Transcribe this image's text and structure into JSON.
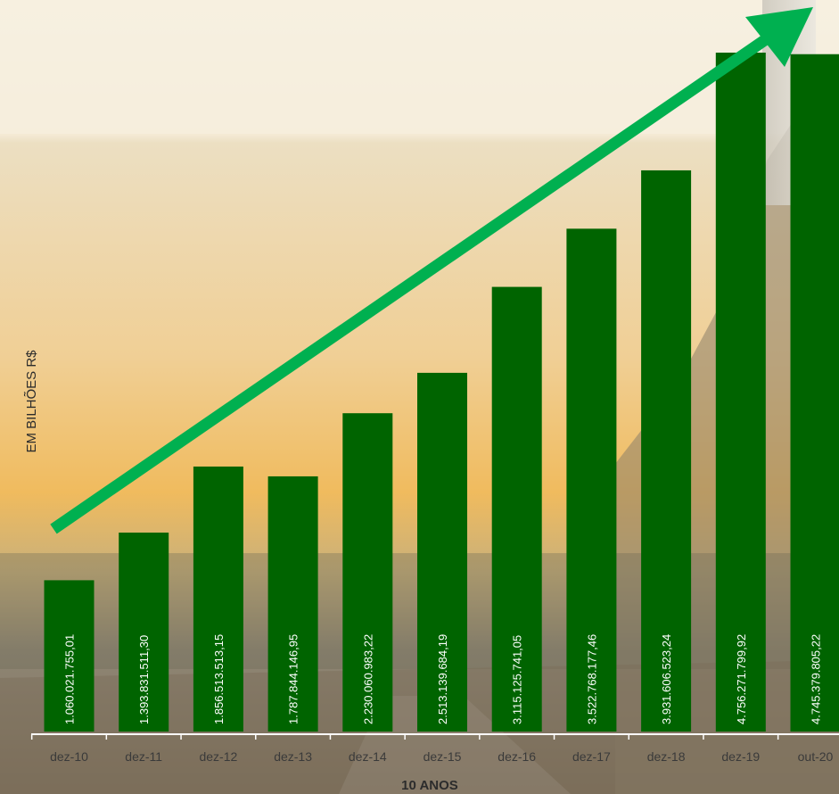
{
  "colors": {
    "bar": "#006400",
    "arrow": "#00b050",
    "axis": "#ffffff",
    "sky_top": "#f6eedb",
    "sky_mid": "#f2c777",
    "ground": "#8a7e6a"
  },
  "chart_data": {
    "type": "bar",
    "categories": [
      "dez-10",
      "dez-11",
      "dez-12",
      "dez-13",
      "dez-14",
      "dez-15",
      "dez-16",
      "dez-17",
      "dez-18",
      "dez-19",
      "out-20"
    ],
    "values": [
      1060021755.01,
      1393831511.3,
      1856513513.15,
      1787844146.95,
      2230060983.22,
      2513139684.19,
      3115125741.05,
      3522768177.46,
      3931606523.24,
      4756271799.92,
      4745379805.22
    ],
    "data_labels": [
      "1.060.021.755,01",
      "1.393.831.511,30",
      "1.856.513.513,15",
      "1.787.844.146,95",
      "2.230.060.983,22",
      "2.513.139.684,19",
      "3.115.125.741,05",
      "3.522.768.177,46",
      "3.931.606.523,24",
      "4.756.271.799,92",
      "4.745.379.805,22"
    ],
    "ylabel": "EM BILHÕES R$",
    "xlabel": "10 ANOS",
    "ylim": [
      0,
      5000000000
    ],
    "grid": false,
    "legend": "none",
    "annotation": "trend-arrow"
  }
}
